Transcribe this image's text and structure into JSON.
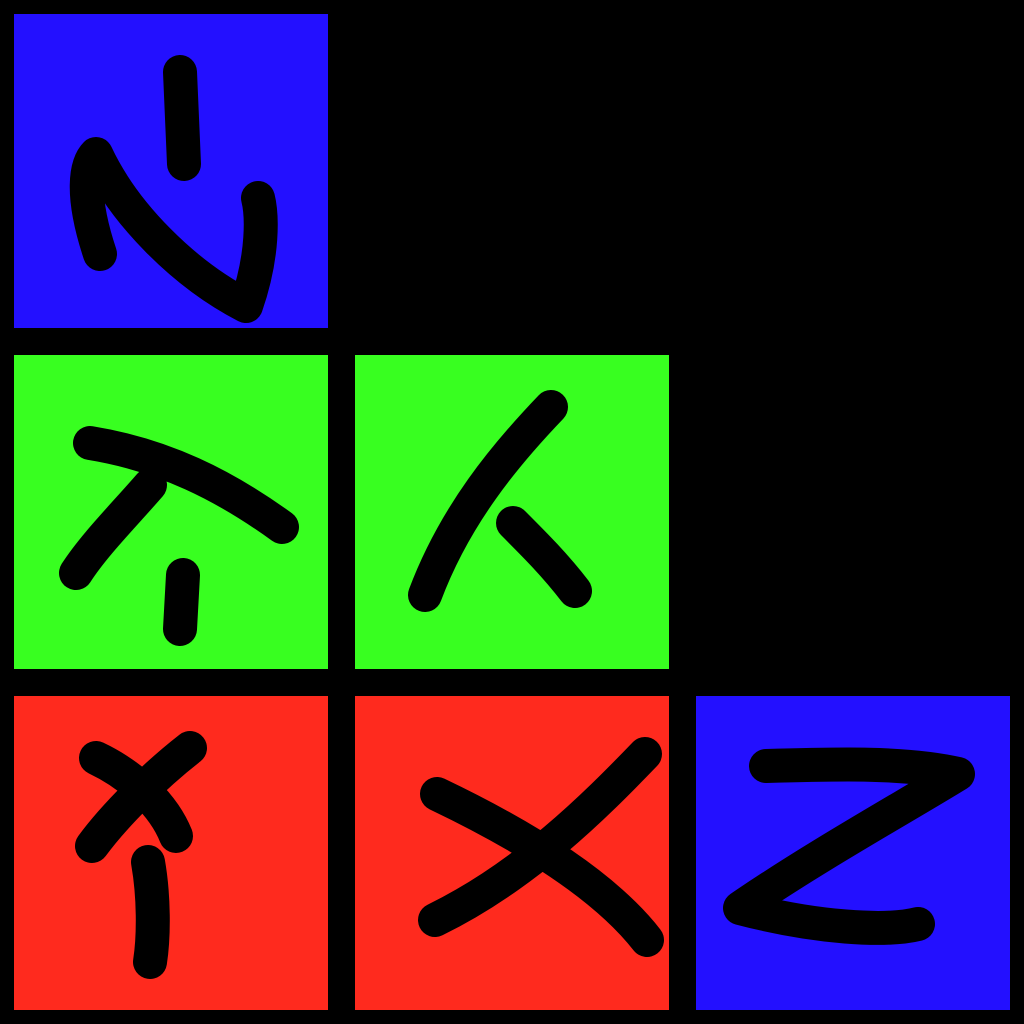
{
  "colors": {
    "background": "#000000",
    "stroke": "#000000",
    "blue": "#2310ff",
    "green": "#38ff20",
    "red": "#ff2a1e"
  },
  "tiles": [
    {
      "row": 0,
      "col": 0,
      "color": "blue",
      "glyph": "rotated-z-with-tick"
    },
    {
      "row": 1,
      "col": 0,
      "color": "green",
      "glyph": "slanted-t-with-tick"
    },
    {
      "row": 1,
      "col": 1,
      "color": "green",
      "glyph": "lambda-shape"
    },
    {
      "row": 2,
      "col": 0,
      "color": "red",
      "glyph": "x-with-tick"
    },
    {
      "row": 2,
      "col": 1,
      "color": "red",
      "glyph": "sideways-x"
    },
    {
      "row": 2,
      "col": 2,
      "color": "blue",
      "glyph": "z-shape"
    }
  ]
}
